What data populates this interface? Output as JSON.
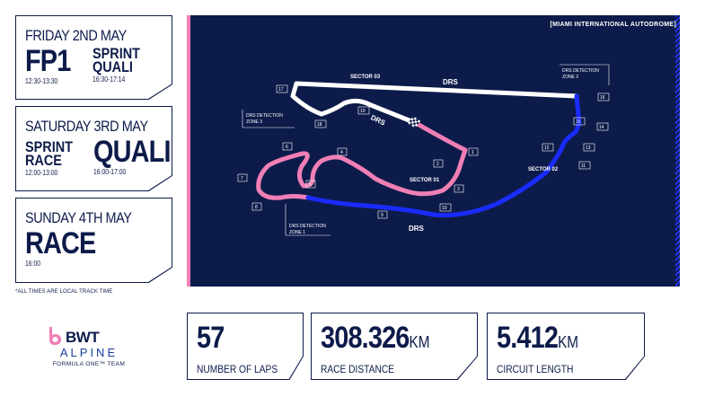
{
  "schedule": [
    {
      "day": "FRIDAY 2ND MAY",
      "sessions": [
        {
          "name": "FP1",
          "size": "big",
          "time": "12:30-13:30"
        },
        {
          "name": "SPRINT\nQUALI",
          "size": "mid",
          "time": "16:30-17:14"
        }
      ]
    },
    {
      "day": "SATURDAY 3RD MAY",
      "sessions": [
        {
          "name": "SPRINT\nRACE",
          "size": "mid",
          "time": "12:00-13:00"
        },
        {
          "name": "QUALI",
          "size": "big",
          "time": "16:00-17:00"
        }
      ]
    },
    {
      "day": "SUNDAY 4TH MAY",
      "sessions": [
        {
          "name": "RACE",
          "size": "big",
          "time": "16:00"
        }
      ]
    }
  ],
  "footnote": "*ALL TIMES ARE LOCAL TRACK TIME",
  "map": {
    "circuit_name": "[MIAMI INTERNATIONAL AUTODROME]",
    "labels": {
      "sector1": "SECTOR 01",
      "sector2": "SECTOR 02",
      "sector3": "SECTOR 03",
      "drs1": "DRS",
      "drs2": "DRS",
      "drs3": "DRS",
      "det1a": "DRS DETECTION",
      "det1b": "ZONE 1",
      "det2a": "DRS DETECTION",
      "det2b": "ZONE 2",
      "det3a": "DRS DETECTION",
      "det3b": "ZONE 3"
    },
    "corners": [
      "1",
      "2",
      "3",
      "4",
      "5",
      "6",
      "7",
      "8",
      "9",
      "10",
      "11",
      "12",
      "13",
      "14",
      "15",
      "16",
      "17",
      "18",
      "19"
    ],
    "colors": {
      "sector1": "#f07fb6",
      "sector2": "#1a2bff",
      "sector3": "#ffffff",
      "background": "#0d1b4a"
    }
  },
  "stats": [
    {
      "value": "57",
      "unit": "",
      "label": "NUMBER OF LAPS"
    },
    {
      "value": "308.326",
      "unit": "KM",
      "label": "RACE DISTANCE"
    },
    {
      "value": "5.412",
      "unit": "KM",
      "label": "CIRCUIT LENGTH"
    }
  ],
  "logo": {
    "sponsor": "BWT",
    "brand": "ALPINE",
    "team": "FORMULA ONE™ TEAM"
  }
}
